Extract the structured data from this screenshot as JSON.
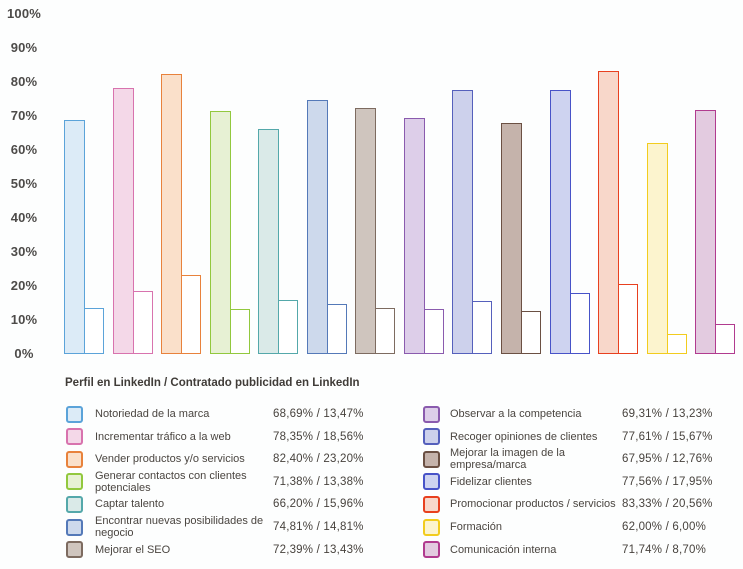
{
  "chart_data": {
    "type": "bar",
    "legend_title": "Perfil en LinkedIn / Contratado publicidad en LinkedIn",
    "series": [
      {
        "name": "Perfil en LinkedIn"
      },
      {
        "name": "Contratado publicidad en LinkedIn"
      }
    ],
    "ylim": [
      0,
      100
    ],
    "ytick_labels": [
      "100%",
      "90%",
      "80%",
      "70%",
      "60%",
      "50%",
      "40%",
      "30%",
      "20%",
      "10%",
      "0%"
    ],
    "grid": false,
    "axis_lines": false,
    "legend_position": "bottom-two-columns",
    "bar_style": "large filled bar (perfil) paired with small white outlined bar (publicidad)",
    "categories": [
      {
        "label": "Notoriedad de la marca",
        "perfil": 68.69,
        "publicidad": 13.47,
        "display": "68,69% / 13,47%",
        "border": "#5BA3D9",
        "fill": "#DCEBF7",
        "legend_column": "left"
      },
      {
        "label": "Incrementar tráfico a la web",
        "perfil": 78.35,
        "publicidad": 18.56,
        "display": "78,35% / 18,56%",
        "border": "#D873AE",
        "fill": "#F4D8E8",
        "legend_column": "left"
      },
      {
        "label": "Vender productos y/o servicios",
        "perfil": 82.4,
        "publicidad": 23.2,
        "display": "82,40% / 23,20%",
        "border": "#E8823C",
        "fill": "#FAE0CA",
        "legend_column": "left"
      },
      {
        "label": "Generar contactos con clientes potenciales",
        "perfil": 71.38,
        "publicidad": 13.38,
        "display": "71,38% / 13,38%",
        "border": "#92C83E",
        "fill": "#E7F1D4",
        "legend_column": "left"
      },
      {
        "label": "Captar talento",
        "perfil": 66.2,
        "publicidad": 15.96,
        "display": "66,20% / 15,96%",
        "border": "#54A8AA",
        "fill": "#DAEAE8",
        "legend_column": "left"
      },
      {
        "label": "Encontrar nuevas posibilidades de negocio",
        "perfil": 74.81,
        "publicidad": 14.81,
        "display": "74,81% / 14,81%",
        "border": "#5479B8",
        "fill": "#CDD9EC",
        "legend_column": "left"
      },
      {
        "label": "Mejorar el SEO",
        "perfil": 72.39,
        "publicidad": 13.43,
        "display": "72,39% / 13,43%",
        "border": "#7D6B60",
        "fill": "#CFC5BE",
        "legend_column": "left"
      },
      {
        "label": "Observar a la competencia",
        "perfil": 69.31,
        "publicidad": 13.23,
        "display": "69,31% / 13,23%",
        "border": "#8A5BAE",
        "fill": "#DDCEE9",
        "legend_column": "right"
      },
      {
        "label": "Recoger opiniones de clientes",
        "perfil": 77.61,
        "publicidad": 15.67,
        "display": "77,61% / 15,67%",
        "border": "#5560BC",
        "fill": "#CDD1EC",
        "legend_column": "right"
      },
      {
        "label": "Mejorar la imagen de la empresa/marca",
        "perfil": 67.95,
        "publicidad": 12.76,
        "display": "67,95% / 12,76%",
        "border": "#6B5043",
        "fill": "#C5B3AB",
        "legend_column": "right"
      },
      {
        "label": "Fidelizar clientes",
        "perfil": 77.56,
        "publicidad": 17.95,
        "display": "77,56% / 17,95%",
        "border": "#4853C8",
        "fill": "#CED3F0",
        "legend_column": "right"
      },
      {
        "label": "Promocionar productos / servicios",
        "perfil": 83.33,
        "publicidad": 20.56,
        "display": "83,33% / 20,56%",
        "border": "#E8401F",
        "fill": "#F8D7CA",
        "legend_column": "right"
      },
      {
        "label": "Formación",
        "perfil": 62.0,
        "publicidad": 6.0,
        "display": "62,00% / 6,00%",
        "border": "#F2CC1E",
        "fill": "#FCF4CE",
        "legend_column": "right"
      },
      {
        "label": "Comunicación interna",
        "perfil": 71.74,
        "publicidad": 8.7,
        "display": "71,74% / 8,70%",
        "border": "#B13B8F",
        "fill": "#E3CBE0",
        "legend_column": "right"
      }
    ]
  }
}
